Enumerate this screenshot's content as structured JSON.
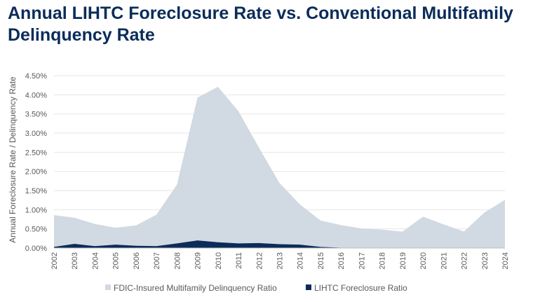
{
  "chart_data": {
    "type": "area",
    "title": "Annual LIHTC Foreclosure Rate vs. Conventional Multifamily Delinquency Rate",
    "xlabel": "",
    "ylabel": "Annual Foreclosure Rate / Delinquency Rate",
    "ylim": [
      0,
      4.5
    ],
    "y_ticks": [
      "0.00%",
      "0.50%",
      "1.00%",
      "1.50%",
      "2.00%",
      "2.50%",
      "3.00%",
      "3.50%",
      "4.00%",
      "4.50%"
    ],
    "grid": true,
    "legend_position": "bottom",
    "categories": [
      "2002",
      "2003",
      "2004",
      "2005",
      "2006",
      "2007",
      "2008",
      "2009",
      "2010",
      "2011",
      "2012",
      "2013",
      "2014",
      "2015",
      "2016",
      "2017",
      "2018",
      "2019",
      "2020",
      "2021",
      "2022",
      "2023",
      "2024"
    ],
    "series": [
      {
        "name": "FDIC-Insured Multifamily Delinquency Ratio",
        "color": "#d1d9e2",
        "values": [
          0.86,
          0.79,
          0.63,
          0.53,
          0.59,
          0.87,
          1.66,
          3.93,
          4.21,
          3.57,
          2.62,
          1.7,
          1.14,
          0.72,
          0.6,
          0.51,
          0.48,
          0.43,
          0.82,
          0.62,
          0.43,
          0.93,
          1.26
        ]
      },
      {
        "name": "LIHTC Foreclosure Ratio",
        "color": "#0b2c5a",
        "values": [
          0.03,
          0.11,
          0.05,
          0.09,
          0.06,
          0.05,
          0.12,
          0.2,
          0.15,
          0.12,
          0.13,
          0.1,
          0.09,
          0.03,
          0.01,
          0.0,
          0.01,
          0.0,
          0.01,
          0.0,
          0.0,
          0.0,
          0.0
        ]
      }
    ]
  }
}
